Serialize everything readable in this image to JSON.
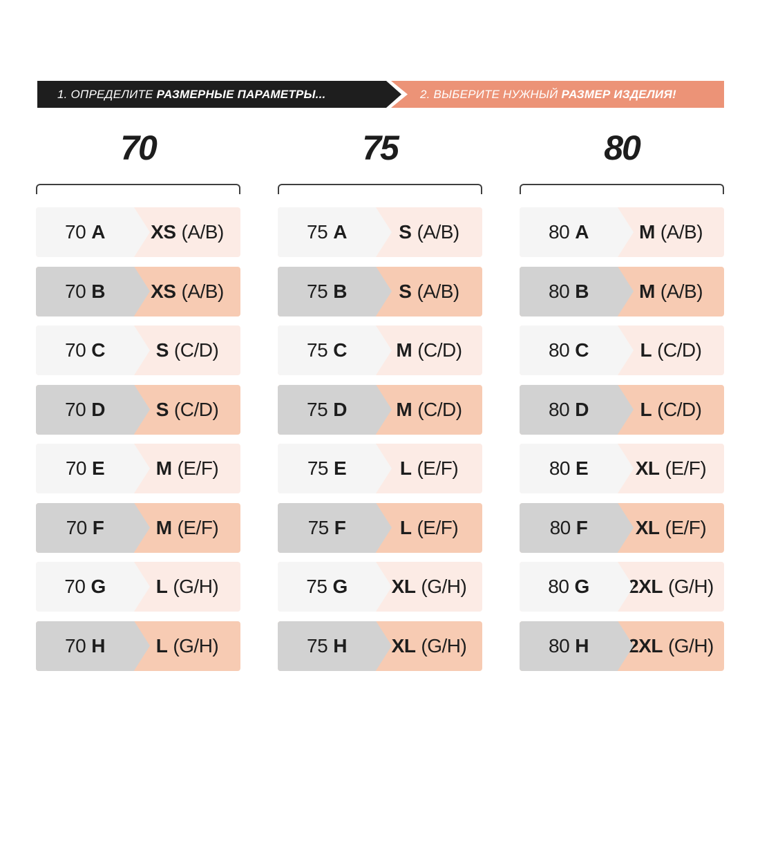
{
  "palette": {
    "banner_black": "#1e1e1e",
    "banner_orange": "#ec9377",
    "row_light_left": "#f5f5f5",
    "row_light_right": "#fcebe5",
    "row_shaded_left": "#d2d2d2",
    "row_shaded_right": "#f7cbb3",
    "text_dark": "#1d1d1d",
    "bracket": "#3f3f3f"
  },
  "steps": {
    "step1": {
      "prefix": "1. ОПРЕДЕЛИТЕ",
      "emphasis": "РАЗМЕРНЫЕ ПАРАМЕТРЫ..."
    },
    "step2": {
      "prefix": "2. ВЫБЕРИТЕ НУЖНЫЙ",
      "emphasis": "РАЗМЕР ИЗДЕЛИЯ!"
    }
  },
  "columns": [
    {
      "header": "70",
      "rows": [
        {
          "band": "70",
          "cup": "A",
          "size": "XS",
          "range": "(A/B)",
          "shaded": false
        },
        {
          "band": "70",
          "cup": "B",
          "size": "XS",
          "range": "(A/B)",
          "shaded": true
        },
        {
          "band": "70",
          "cup": "C",
          "size": "S",
          "range": "(C/D)",
          "shaded": false
        },
        {
          "band": "70",
          "cup": "D",
          "size": "S",
          "range": "(C/D)",
          "shaded": true
        },
        {
          "band": "70",
          "cup": "E",
          "size": "M",
          "range": "(E/F)",
          "shaded": false
        },
        {
          "band": "70",
          "cup": "F",
          "size": "M",
          "range": "(E/F)",
          "shaded": true
        },
        {
          "band": "70",
          "cup": "G",
          "size": "L",
          "range": "(G/H)",
          "shaded": false
        },
        {
          "band": "70",
          "cup": "H",
          "size": "L",
          "range": "(G/H)",
          "shaded": true
        }
      ]
    },
    {
      "header": "75",
      "rows": [
        {
          "band": "75",
          "cup": "A",
          "size": "S",
          "range": "(A/B)",
          "shaded": false
        },
        {
          "band": "75",
          "cup": "B",
          "size": "S",
          "range": "(A/B)",
          "shaded": true
        },
        {
          "band": "75",
          "cup": "C",
          "size": "M",
          "range": "(C/D)",
          "shaded": false
        },
        {
          "band": "75",
          "cup": "D",
          "size": "M",
          "range": "(C/D)",
          "shaded": true
        },
        {
          "band": "75",
          "cup": "E",
          "size": "L",
          "range": "(E/F)",
          "shaded": false
        },
        {
          "band": "75",
          "cup": "F",
          "size": "L",
          "range": "(E/F)",
          "shaded": true
        },
        {
          "band": "75",
          "cup": "G",
          "size": "XL",
          "range": "(G/H)",
          "shaded": false
        },
        {
          "band": "75",
          "cup": "H",
          "size": "XL",
          "range": "(G/H)",
          "shaded": true
        }
      ]
    },
    {
      "header": "80",
      "rows": [
        {
          "band": "80",
          "cup": "A",
          "size": "M",
          "range": "(A/B)",
          "shaded": false
        },
        {
          "band": "80",
          "cup": "B",
          "size": "M",
          "range": "(A/B)",
          "shaded": true
        },
        {
          "band": "80",
          "cup": "C",
          "size": "L",
          "range": "(C/D)",
          "shaded": false
        },
        {
          "band": "80",
          "cup": "D",
          "size": "L",
          "range": "(C/D)",
          "shaded": true
        },
        {
          "band": "80",
          "cup": "E",
          "size": "XL",
          "range": "(E/F)",
          "shaded": false
        },
        {
          "band": "80",
          "cup": "F",
          "size": "XL",
          "range": "(E/F)",
          "shaded": true
        },
        {
          "band": "80",
          "cup": "G",
          "size": "2XL",
          "range": "(G/H)",
          "shaded": false
        },
        {
          "band": "80",
          "cup": "H",
          "size": "2XL",
          "range": "(G/H)",
          "shaded": true
        }
      ]
    }
  ]
}
